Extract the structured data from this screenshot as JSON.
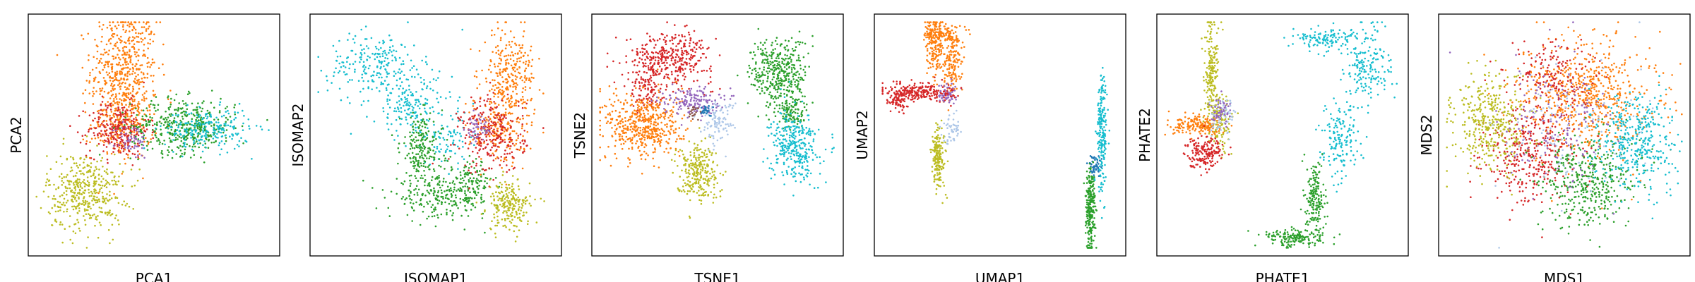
{
  "figure": {
    "colors": [
      "#d62728",
      "#ff7f0e",
      "#9467bd",
      "#2ca02c",
      "#17becf",
      "#bcbd22",
      "#aec7e8",
      "#1f77b4",
      "#8c564b",
      "#e377c2"
    ]
  },
  "chart_data": [
    {
      "type": "scatter",
      "xlabel": "PCA1",
      "ylabel": "PCA2",
      "xlim": [
        -1,
        1
      ],
      "ylim": [
        -1,
        1
      ],
      "ticks": "none",
      "grid": false,
      "legend": "none",
      "series": [
        {
          "color": "#ff7f0e",
          "clusters": [
            {
              "center": [
                -0.25,
                0.58
              ],
              "spread": [
                0.14,
                0.26
              ],
              "count": 500
            },
            {
              "center": [
                -0.27,
                0.1
              ],
              "spread": [
                0.13,
                0.16
              ],
              "count": 220
            }
          ]
        },
        {
          "color": "#d62728",
          "clusters": [
            {
              "center": [
                -0.3,
                0.05
              ],
              "spread": [
                0.13,
                0.12
              ],
              "count": 260
            }
          ]
        },
        {
          "color": "#9467bd",
          "clusters": [
            {
              "center": [
                -0.18,
                -0.05
              ],
              "spread": [
                0.07,
                0.08
              ],
              "count": 60
            }
          ]
        },
        {
          "color": "#2ca02c",
          "clusters": [
            {
              "center": [
                0.25,
                0.08
              ],
              "spread": [
                0.22,
                0.12
              ],
              "count": 420
            }
          ]
        },
        {
          "color": "#17becf",
          "clusters": [
            {
              "center": [
                0.45,
                0.05
              ],
              "spread": [
                0.18,
                0.09
              ],
              "count": 220
            }
          ]
        },
        {
          "color": "#bcbd22",
          "clusters": [
            {
              "center": [
                -0.58,
                -0.5
              ],
              "spread": [
                0.16,
                0.17
              ],
              "count": 420
            }
          ]
        }
      ]
    },
    {
      "type": "scatter",
      "xlabel": "ISOMAP1",
      "ylabel": "ISOMAP2",
      "xlim": [
        -1,
        1
      ],
      "ylim": [
        -1,
        1
      ],
      "ticks": "none",
      "grid": false,
      "legend": "none",
      "series": [
        {
          "color": "#17becf",
          "clusters": [
            {
              "center": [
                -0.5,
                0.62
              ],
              "spread": [
                0.2,
                0.14
              ],
              "count": 220
            },
            {
              "center": [
                -0.2,
                0.25
              ],
              "spread": [
                0.17,
                0.14
              ],
              "count": 170
            },
            {
              "center": [
                0.1,
                -0.05
              ],
              "spread": [
                0.14,
                0.12
              ],
              "count": 80
            }
          ]
        },
        {
          "color": "#2ca02c",
          "clusters": [
            {
              "center": [
                -0.12,
                -0.12
              ],
              "spread": [
                0.09,
                0.15
              ],
              "count": 200
            },
            {
              "center": [
                0.05,
                -0.55
              ],
              "spread": [
                0.22,
                0.09
              ],
              "count": 240
            },
            {
              "center": [
                0.3,
                -0.4
              ],
              "spread": [
                0.09,
                0.09
              ],
              "count": 90
            }
          ]
        },
        {
          "color": "#ff7f0e",
          "clusters": [
            {
              "center": [
                0.62,
                0.48
              ],
              "spread": [
                0.11,
                0.22
              ],
              "count": 320
            },
            {
              "center": [
                0.52,
                0.05
              ],
              "spread": [
                0.11,
                0.15
              ],
              "count": 160
            }
          ]
        },
        {
          "color": "#d62728",
          "clusters": [
            {
              "center": [
                0.48,
                0.0
              ],
              "spread": [
                0.14,
                0.17
              ],
              "count": 260
            }
          ]
        },
        {
          "color": "#9467bd",
          "clusters": [
            {
              "center": [
                0.35,
                0.05
              ],
              "spread": [
                0.05,
                0.06
              ],
              "count": 50
            }
          ]
        },
        {
          "color": "#bcbd22",
          "clusters": [
            {
              "center": [
                0.62,
                -0.62
              ],
              "spread": [
                0.09,
                0.11
              ],
              "count": 220
            }
          ]
        }
      ]
    },
    {
      "type": "scatter",
      "xlabel": "TSNE1",
      "ylabel": "TSNE2",
      "xlim": [
        -1,
        1
      ],
      "ylim": [
        -1,
        1
      ],
      "ticks": "none",
      "grid": false,
      "legend": "none",
      "series": [
        {
          "color": "#d62728",
          "clusters": [
            {
              "center": [
                -0.4,
                0.68
              ],
              "spread": [
                0.18,
                0.11
              ],
              "count": 380
            },
            {
              "center": [
                -0.6,
                0.4
              ],
              "spread": [
                0.07,
                0.1
              ],
              "count": 100
            }
          ]
        },
        {
          "color": "#ff7f0e",
          "clusters": [
            {
              "center": [
                -0.62,
                0.08
              ],
              "spread": [
                0.16,
                0.15
              ],
              "count": 500
            }
          ]
        },
        {
          "color": "#9467bd",
          "clusters": [
            {
              "center": [
                -0.22,
                0.3
              ],
              "spread": [
                0.12,
                0.06
              ],
              "count": 160
            }
          ]
        },
        {
          "color": "#bcbd22",
          "clusters": [
            {
              "center": [
                -0.17,
                -0.32
              ],
              "spread": [
                0.09,
                0.13
              ],
              "count": 260
            }
          ]
        },
        {
          "color": "#aec7e8",
          "clusters": [
            {
              "center": [
                0.0,
                0.12
              ],
              "spread": [
                0.07,
                0.09
              ],
              "count": 100
            }
          ]
        },
        {
          "color": "#1f77b4",
          "clusters": [
            {
              "center": [
                -0.1,
                0.22
              ],
              "spread": [
                0.03,
                0.03
              ],
              "count": 25
            }
          ]
        },
        {
          "color": "#8c564b",
          "clusters": [
            {
              "center": [
                -0.2,
                0.2
              ],
              "spread": [
                0.03,
                0.03
              ],
              "count": 20
            }
          ]
        },
        {
          "color": "#2ca02c",
          "clusters": [
            {
              "center": [
                0.52,
                0.55
              ],
              "spread": [
                0.12,
                0.15
              ],
              "count": 380
            },
            {
              "center": [
                0.62,
                0.2
              ],
              "spread": [
                0.07,
                0.08
              ],
              "count": 120
            }
          ]
        },
        {
          "color": "#17becf",
          "clusters": [
            {
              "center": [
                0.65,
                -0.1
              ],
              "spread": [
                0.1,
                0.15
              ],
              "count": 330
            }
          ]
        }
      ]
    },
    {
      "type": "scatter",
      "xlabel": "UMAP1",
      "ylabel": "UMAP2",
      "xlim": [
        -1,
        1
      ],
      "ylim": [
        -1,
        1
      ],
      "ticks": "none",
      "grid": false,
      "legend": "none",
      "series": [
        {
          "color": "#ff7f0e",
          "clusters": [
            {
              "center": [
                -0.55,
                0.78
              ],
              "spread": [
                0.04,
                0.13
              ],
              "count": 180
            },
            {
              "center": [
                -0.4,
                0.65
              ],
              "spread": [
                0.04,
                0.14
              ],
              "count": 150
            },
            {
              "center": [
                -0.48,
                0.88
              ],
              "spread": [
                0.07,
                0.04
              ],
              "count": 80
            }
          ]
        },
        {
          "color": "#9467bd",
          "clusters": [
            {
              "center": [
                -0.44,
                0.38
              ],
              "spread": [
                0.04,
                0.05
              ],
              "count": 60
            }
          ]
        },
        {
          "color": "#d62728",
          "clusters": [
            {
              "center": [
                -0.68,
                0.38
              ],
              "spread": [
                0.14,
                0.04
              ],
              "count": 240
            },
            {
              "center": [
                -0.86,
                0.3
              ],
              "spread": [
                0.04,
                0.05
              ],
              "count": 70
            }
          ]
        },
        {
          "color": "#aec7e8",
          "clusters": [
            {
              "center": [
                -0.4,
                0.05
              ],
              "spread": [
                0.04,
                0.06
              ],
              "count": 50
            }
          ]
        },
        {
          "color": "#bcbd22",
          "clusters": [
            {
              "center": [
                -0.52,
                -0.2
              ],
              "spread": [
                0.03,
                0.14
              ],
              "count": 180
            }
          ]
        },
        {
          "color": "#17becf",
          "clusters": [
            {
              "center": [
                0.86,
                0.02
              ],
              "spread": [
                0.02,
                0.26
              ],
              "count": 200
            }
          ]
        },
        {
          "color": "#1f77b4",
          "clusters": [
            {
              "center": [
                0.8,
                -0.28
              ],
              "spread": [
                0.03,
                0.05
              ],
              "count": 50
            }
          ]
        },
        {
          "color": "#2ca02c",
          "clusters": [
            {
              "center": [
                0.76,
                -0.65
              ],
              "spread": [
                0.02,
                0.2
              ],
              "count": 260
            }
          ]
        }
      ]
    },
    {
      "type": "scatter",
      "xlabel": "PHATE1",
      "ylabel": "PHATE2",
      "xlim": [
        -1,
        1
      ],
      "ylim": [
        -1,
        1
      ],
      "ticks": "none",
      "grid": false,
      "legend": "none",
      "series": [
        {
          "color": "#bcbd22",
          "clusters": [
            {
              "center": [
                -0.6,
                0.55
              ],
              "spread": [
                0.03,
                0.22
              ],
              "count": 200
            },
            {
              "center": [
                -0.53,
                0.1
              ],
              "spread": [
                0.05,
                0.12
              ],
              "count": 120
            }
          ]
        },
        {
          "color": "#ff7f0e",
          "clusters": [
            {
              "center": [
                -0.7,
                0.08
              ],
              "spread": [
                0.12,
                0.04
              ],
              "count": 170
            }
          ]
        },
        {
          "color": "#aec7e8",
          "clusters": [
            {
              "center": [
                -0.5,
                0.15
              ],
              "spread": [
                0.05,
                0.08
              ],
              "count": 70
            }
          ]
        },
        {
          "color": "#9467bd",
          "clusters": [
            {
              "center": [
                -0.52,
                0.22
              ],
              "spread": [
                0.04,
                0.06
              ],
              "count": 50
            }
          ]
        },
        {
          "color": "#d62728",
          "clusters": [
            {
              "center": [
                -0.66,
                -0.14
              ],
              "spread": [
                0.08,
                0.07
              ],
              "count": 180
            }
          ]
        },
        {
          "color": "#17becf",
          "clusters": [
            {
              "center": [
                0.72,
                0.6
              ],
              "spread": [
                0.1,
                0.18
              ],
              "count": 180
            },
            {
              "center": [
                0.48,
                -0.05
              ],
              "spread": [
                0.08,
                0.16
              ],
              "count": 160
            },
            {
              "center": [
                0.35,
                0.85
              ],
              "spread": [
                0.12,
                0.05
              ],
              "count": 120
            }
          ]
        },
        {
          "color": "#2ca02c",
          "clusters": [
            {
              "center": [
                0.28,
                -0.55
              ],
              "spread": [
                0.04,
                0.16
              ],
              "count": 170
            },
            {
              "center": [
                0.1,
                -0.9
              ],
              "spread": [
                0.13,
                0.04
              ],
              "count": 170
            }
          ]
        }
      ]
    },
    {
      "type": "scatter",
      "xlabel": "MDS1",
      "ylabel": "MDS2",
      "xlim": [
        -1,
        1
      ],
      "ylim": [
        -1,
        1
      ],
      "ticks": "none",
      "grid": false,
      "legend": "none",
      "series": [
        {
          "color": "#ff7f0e",
          "clusters": [
            {
              "center": [
                0.2,
                0.35
              ],
              "spread": [
                0.28,
                0.25
              ],
              "count": 650
            }
          ]
        },
        {
          "color": "#d62728",
          "clusters": [
            {
              "center": [
                -0.28,
                -0.15
              ],
              "spread": [
                0.2,
                0.22
              ],
              "count": 380
            },
            {
              "center": [
                -0.1,
                0.55
              ],
              "spread": [
                0.18,
                0.13
              ],
              "count": 150
            }
          ]
        },
        {
          "color": "#bcbd22",
          "clusters": [
            {
              "center": [
                -0.62,
                0.1
              ],
              "spread": [
                0.15,
                0.2
              ],
              "count": 380
            }
          ]
        },
        {
          "color": "#2ca02c",
          "clusters": [
            {
              "center": [
                0.2,
                -0.4
              ],
              "spread": [
                0.2,
                0.2
              ],
              "count": 420
            }
          ]
        },
        {
          "color": "#17becf",
          "clusters": [
            {
              "center": [
                0.62,
                -0.05
              ],
              "spread": [
                0.16,
                0.22
              ],
              "count": 380
            }
          ]
        },
        {
          "color": "#9467bd",
          "clusters": [
            {
              "center": [
                -0.1,
                0.1
              ],
              "spread": [
                0.25,
                0.3
              ],
              "count": 150
            }
          ]
        },
        {
          "color": "#aec7e8",
          "clusters": [
            {
              "center": [
                0.0,
                0.0
              ],
              "spread": [
                0.3,
                0.35
              ],
              "count": 110
            }
          ]
        }
      ]
    }
  ]
}
